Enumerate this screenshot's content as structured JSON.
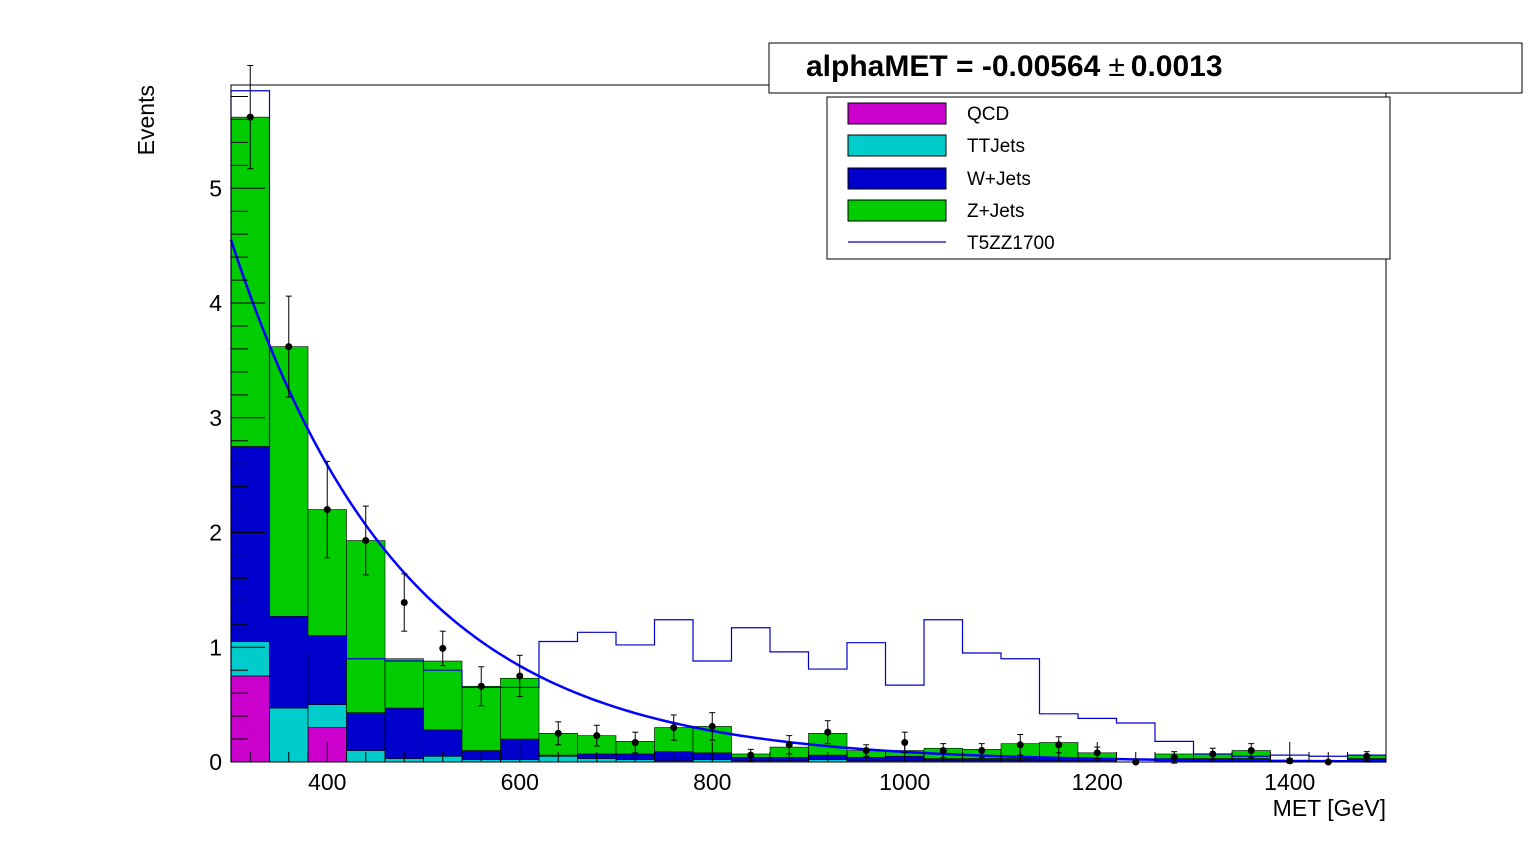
{
  "chart_data": {
    "type": "bar",
    "title_parts": {
      "name": "alphaMET = -0.00564",
      "pm": "±",
      "error": "0.0013"
    },
    "xlabel": "MET [GeV]",
    "ylabel": "Events",
    "xlim": [
      300,
      1500
    ],
    "ylim": [
      0,
      5.9
    ],
    "bin_width": 40,
    "bin_edges_start": [
      300,
      340,
      380,
      420,
      460,
      500,
      540,
      580,
      620,
      660,
      700,
      740,
      780,
      820,
      860,
      900,
      940,
      980,
      1020,
      1060,
      1100,
      1140,
      1180,
      1220,
      1260,
      1300,
      1340,
      1380,
      1420,
      1460
    ],
    "x_ticks": [
      400,
      600,
      800,
      1000,
      1200,
      1400
    ],
    "x_tick_labels": [
      "400",
      "600",
      "800",
      "1000",
      "1200",
      "1400"
    ],
    "y_ticks": [
      0,
      1,
      2,
      3,
      4,
      5
    ],
    "y_tick_labels": [
      "0",
      "1",
      "2",
      "3",
      "4",
      "5"
    ],
    "stack": [
      {
        "name": "QCD",
        "color": "#cc00cc",
        "values": [
          0.75,
          0,
          0.3,
          0,
          0,
          0,
          0,
          0,
          0,
          0,
          0,
          0,
          0,
          0,
          0,
          0,
          0,
          0,
          0,
          0,
          0,
          0,
          0,
          0,
          0,
          0,
          0,
          0,
          0,
          0
        ]
      },
      {
        "name": "TTJets",
        "color": "#00cccc",
        "values": [
          0.3,
          0.47,
          0.2,
          0.1,
          0.03,
          0.05,
          0.02,
          0.02,
          0.05,
          0.03,
          0.02,
          0.01,
          0.02,
          0.01,
          0.01,
          0.02,
          0.01,
          0.01,
          0.01,
          0.01,
          0.01,
          0.01,
          0.01,
          0,
          0.01,
          0.01,
          0.01,
          0,
          0,
          0.01
        ]
      },
      {
        "name": "W+Jets",
        "color": "#0000cc",
        "values": [
          1.7,
          0.8,
          0.6,
          0.33,
          0.44,
          0.23,
          0.08,
          0.18,
          0.01,
          0.04,
          0.05,
          0.08,
          0.06,
          0.03,
          0.03,
          0.04,
          0.03,
          0.04,
          0.02,
          0.02,
          0.02,
          0.03,
          0.02,
          0,
          0.02,
          0.02,
          0.02,
          0,
          0,
          0.02
        ]
      },
      {
        "name": "Z+Jets",
        "color": "#00cc00",
        "values": [
          2.87,
          2.35,
          1.1,
          1.5,
          0.43,
          0.6,
          0.56,
          0.53,
          0.19,
          0.16,
          0.11,
          0.21,
          0.23,
          0.03,
          0.09,
          0.19,
          0.06,
          0.05,
          0.09,
          0.08,
          0.13,
          0.13,
          0.05,
          0,
          0.04,
          0.04,
          0.07,
          0,
          0,
          0.03
        ]
      }
    ],
    "signal": {
      "name": "T5ZZ1700",
      "color": "#0000cc",
      "values": [
        5.85,
        0.95,
        1.1,
        0.9,
        0.88,
        0.8,
        0.65,
        0.65,
        1.05,
        1.13,
        1.02,
        1.24,
        0.88,
        1.17,
        0.96,
        0.81,
        1.04,
        0.67,
        1.24,
        0.95,
        0.9,
        0.42,
        0.38,
        0.34,
        0.18,
        0.07,
        0.05,
        0.06,
        0.05,
        0.06
      ]
    },
    "data_points": {
      "x": [
        320,
        360,
        400,
        440,
        480,
        520,
        560,
        600,
        640,
        680,
        720,
        760,
        800,
        840,
        880,
        920,
        960,
        1000,
        1040,
        1080,
        1120,
        1160,
        1200,
        1240,
        1280,
        1320,
        1360,
        1400,
        1440,
        1480
      ],
      "y": [
        5.62,
        3.62,
        2.2,
        1.93,
        1.39,
        0.99,
        0.66,
        0.75,
        0.25,
        0.23,
        0.17,
        0.3,
        0.31,
        0.06,
        0.15,
        0.26,
        0.1,
        0.17,
        0.1,
        0.1,
        0.15,
        0.15,
        0.08,
        0.0,
        0.04,
        0.07,
        0.1,
        0.01,
        0.0,
        0.05
      ],
      "err": [
        0.45,
        0.44,
        0.42,
        0.3,
        0.25,
        0.15,
        0.17,
        0.18,
        0.1,
        0.09,
        0.09,
        0.11,
        0.12,
        0.05,
        0.08,
        0.1,
        0.05,
        0.09,
        0.06,
        0.06,
        0.09,
        0.07,
        0.05,
        0.0,
        0.05,
        0.05,
        0.06,
        0.02,
        0.0,
        0.04
      ]
    },
    "fit_curve": {
      "color": "#0000ff",
      "amplitude_at_300": 4.55,
      "slope": -0.00564
    },
    "legend_position": "top-right",
    "grid": false
  }
}
